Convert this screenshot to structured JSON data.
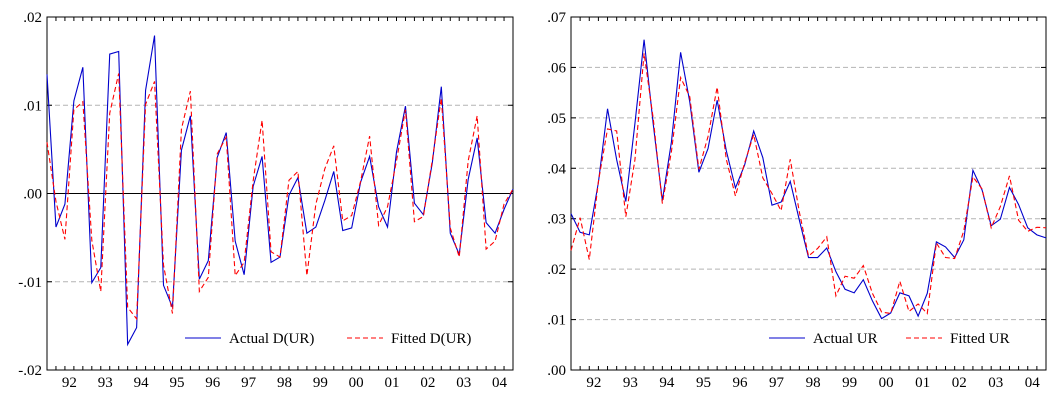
{
  "chart_data": [
    {
      "type": "line",
      "title": "",
      "xlabel": "",
      "ylabel": "",
      "x_tick_labels": [
        "92",
        "93",
        "94",
        "95",
        "96",
        "97",
        "98",
        "99",
        "00",
        "01",
        "02",
        "03",
        "04"
      ],
      "x_range": [
        1991.75,
        2004.75
      ],
      "ylim": [
        -0.02,
        0.02
      ],
      "y_ticks": [
        -0.02,
        -0.01,
        0.0,
        0.01,
        0.02
      ],
      "y_tick_labels": [
        "-.02",
        "-.01",
        ".00",
        ".01",
        ".02"
      ],
      "grid": "horizontal dashed",
      "zero_line": true,
      "legend_position": "bottom-right",
      "series": [
        {
          "name": "Actual D(UR)",
          "color": "#0000cc",
          "style": "solid",
          "x": [
            1991.75,
            1992,
            1992.25,
            1992.5,
            1992.75,
            1993,
            1993.25,
            1993.5,
            1993.75,
            1994,
            1994.25,
            1994.5,
            1994.75,
            1995,
            1995.25,
            1995.5,
            1995.75,
            1996,
            1996.25,
            1996.5,
            1996.75,
            1997,
            1997.25,
            1997.5,
            1997.75,
            1998,
            1998.25,
            1998.5,
            1998.75,
            1999,
            1999.25,
            1999.5,
            1999.75,
            2000,
            2000.25,
            2000.5,
            2000.75,
            2001,
            2001.25,
            2001.5,
            2001.75,
            2002,
            2002.25,
            2002.5,
            2002.75,
            2003,
            2003.25,
            2003.5,
            2003.75,
            2004,
            2004.25,
            2004.5,
            2004.75
          ],
          "values": [
            0.0135,
            -0.0038,
            -0.0012,
            0.0105,
            0.0143,
            -0.0101,
            -0.0084,
            0.0158,
            0.0161,
            -0.0171,
            -0.0152,
            0.0117,
            0.0179,
            -0.0104,
            -0.0129,
            0.0049,
            0.0088,
            -0.0097,
            -0.0076,
            0.0041,
            0.0069,
            -0.0054,
            -0.0092,
            0.0008,
            0.0042,
            -0.0078,
            -0.0072,
            -0.0002,
            0.0018,
            -0.0045,
            -0.0038,
            -0.0008,
            0.0025,
            -0.0042,
            -0.0039,
            0.0013,
            0.0042,
            -0.0015,
            -0.0038,
            0.0047,
            0.0099,
            -0.0011,
            -0.0024,
            0.0035,
            0.0121,
            -0.0045,
            -0.0069,
            0.0016,
            0.0063,
            -0.0033,
            -0.0045,
            -0.0018,
            0.0005
          ]
        },
        {
          "name": "Fitted D(UR)",
          "color": "#ff0000",
          "style": "dashed",
          "x": [
            1991.75,
            1992,
            1992.25,
            1992.5,
            1992.75,
            1993,
            1993.25,
            1993.5,
            1993.75,
            1994,
            1994.25,
            1994.5,
            1994.75,
            1995,
            1995.25,
            1995.5,
            1995.75,
            1996,
            1996.25,
            1996.5,
            1996.75,
            1997,
            1997.25,
            1997.5,
            1997.75,
            1998,
            1998.25,
            1998.5,
            1998.75,
            1999,
            1999.25,
            1999.5,
            1999.75,
            2000,
            2000.25,
            2000.5,
            2000.75,
            2001,
            2001.25,
            2001.5,
            2001.75,
            2002,
            2002.25,
            2002.5,
            2002.75,
            2003,
            2003.25,
            2003.5,
            2003.75,
            2004,
            2004.25,
            2004.5,
            2004.75
          ],
          "values": [
            0.0058,
            -0.0009,
            -0.0052,
            0.0095,
            0.0104,
            -0.0053,
            -0.0111,
            0.0091,
            0.0136,
            -0.0129,
            -0.0142,
            0.0101,
            0.0127,
            -0.0081,
            -0.0136,
            0.0073,
            0.0116,
            -0.0111,
            -0.0095,
            0.0045,
            0.0064,
            -0.0093,
            -0.0078,
            0.0014,
            0.0083,
            -0.0066,
            -0.0072,
            0.0015,
            0.0025,
            -0.0093,
            -0.0012,
            0.0028,
            0.0054,
            -0.0031,
            -0.0025,
            0.0014,
            0.0065,
            -0.0036,
            -0.0015,
            0.0037,
            0.0095,
            -0.0032,
            -0.0026,
            0.0038,
            0.0108,
            -0.0039,
            -0.0072,
            0.0037,
            0.0088,
            -0.0063,
            -0.0054,
            -0.0012,
            0.0005
          ]
        }
      ]
    },
    {
      "type": "line",
      "title": "",
      "xlabel": "",
      "ylabel": "",
      "x_tick_labels": [
        "92",
        "93",
        "94",
        "95",
        "96",
        "97",
        "98",
        "99",
        "00",
        "01",
        "02",
        "03",
        "04"
      ],
      "x_range": [
        1991.75,
        2004.75
      ],
      "ylim": [
        0.0,
        0.07
      ],
      "y_ticks": [
        0.0,
        0.01,
        0.02,
        0.03,
        0.04,
        0.05,
        0.06,
        0.07
      ],
      "y_tick_labels": [
        ".00",
        ".01",
        ".02",
        ".03",
        ".04",
        ".05",
        ".06",
        ".07"
      ],
      "grid": "horizontal dashed",
      "zero_line": false,
      "legend_position": "bottom-right",
      "series": [
        {
          "name": "Actual UR",
          "color": "#0000cc",
          "style": "solid",
          "x": [
            1991.75,
            1992,
            1992.25,
            1992.5,
            1992.75,
            1993,
            1993.25,
            1993.5,
            1993.75,
            1994,
            1994.25,
            1994.5,
            1994.75,
            1995,
            1995.25,
            1995.5,
            1995.75,
            1996,
            1996.25,
            1996.5,
            1996.75,
            1997,
            1997.25,
            1997.5,
            1997.75,
            1998,
            1998.25,
            1998.5,
            1998.75,
            1999,
            1999.25,
            1999.5,
            1999.75,
            2000,
            2000.25,
            2000.5,
            2000.75,
            2001,
            2001.25,
            2001.5,
            2001.75,
            2002,
            2002.25,
            2002.5,
            2002.75,
            2003,
            2003.25,
            2003.5,
            2003.75,
            2004,
            2004.25,
            2004.5,
            2004.75
          ],
          "values": [
            0.031,
            0.0273,
            0.0268,
            0.0372,
            0.0518,
            0.0417,
            0.0334,
            0.0489,
            0.0655,
            0.0488,
            0.0336,
            0.0453,
            0.063,
            0.0532,
            0.0392,
            0.0439,
            0.0535,
            0.0435,
            0.0361,
            0.0406,
            0.0474,
            0.0421,
            0.0327,
            0.0333,
            0.0374,
            0.0297,
            0.0223,
            0.0223,
            0.0242,
            0.0195,
            0.016,
            0.0153,
            0.0179,
            0.0137,
            0.0102,
            0.0113,
            0.0153,
            0.0147,
            0.0107,
            0.0152,
            0.0254,
            0.0244,
            0.0223,
            0.0258,
            0.0396,
            0.0357,
            0.0286,
            0.0299,
            0.0362,
            0.0328,
            0.0282,
            0.0268,
            0.0262
          ]
        },
        {
          "name": "Fitted UR",
          "color": "#ff0000",
          "style": "dashed",
          "x": [
            1991.75,
            1992,
            1992.25,
            1992.5,
            1992.75,
            1993,
            1993.25,
            1993.5,
            1993.75,
            1994,
            1994.25,
            1994.5,
            1994.75,
            1995,
            1995.25,
            1995.5,
            1995.75,
            1996,
            1996.25,
            1996.5,
            1996.75,
            1997,
            1997.25,
            1997.5,
            1997.75,
            1998,
            1998.25,
            1998.5,
            1998.75,
            1999,
            1999.25,
            1999.5,
            1999.75,
            2000,
            2000.25,
            2000.5,
            2000.75,
            2001,
            2001.25,
            2001.5,
            2001.75,
            2002,
            2002.25,
            2002.5,
            2002.75,
            2003,
            2003.25,
            2003.5,
            2003.75,
            2004,
            2004.25,
            2004.5,
            2004.75
          ],
          "values": [
            0.0237,
            0.0302,
            0.0219,
            0.0374,
            0.0478,
            0.0474,
            0.0304,
            0.0417,
            0.0628,
            0.0499,
            0.033,
            0.0434,
            0.058,
            0.0542,
            0.0398,
            0.0463,
            0.0561,
            0.0418,
            0.0345,
            0.041,
            0.0467,
            0.0381,
            0.035,
            0.0316,
            0.0418,
            0.0313,
            0.0226,
            0.0241,
            0.0264,
            0.0147,
            0.0186,
            0.0182,
            0.0207,
            0.0152,
            0.0115,
            0.0112,
            0.0176,
            0.0116,
            0.0131,
            0.0112,
            0.0252,
            0.0223,
            0.0221,
            0.0276,
            0.0383,
            0.0359,
            0.0282,
            0.0324,
            0.0385,
            0.0297,
            0.0275,
            0.0283,
            0.0282
          ]
        }
      ]
    }
  ]
}
